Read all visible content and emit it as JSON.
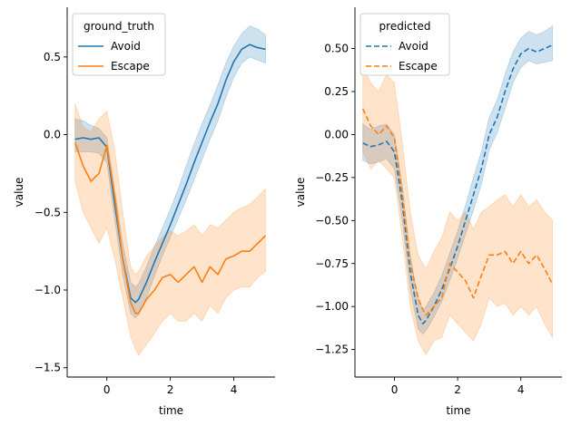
{
  "chart_data": [
    {
      "type": "line",
      "xlabel": "time",
      "ylabel": "value",
      "xlim": [
        -1.25,
        5.3
      ],
      "ylim": [
        -1.56,
        0.82
      ],
      "xticks": [
        0,
        2,
        4
      ],
      "yticks": [
        -1.5,
        -1.0,
        -0.5,
        0.0,
        0.5
      ],
      "ytick_labels": [
        "−1.5",
        "−1.0",
        "−0.5",
        "0.0",
        "0.5"
      ],
      "grid": false,
      "legend": {
        "title": "ground_truth",
        "placement": "upper-left"
      },
      "series": [
        {
          "name": "Avoid",
          "color": "#1f77b4",
          "dashed": false,
          "x": [
            -1.0,
            -0.75,
            -0.5,
            -0.25,
            0.0,
            0.25,
            0.5,
            0.75,
            0.9,
            1.0,
            1.25,
            1.5,
            1.75,
            2.0,
            2.25,
            2.5,
            2.75,
            3.0,
            3.25,
            3.5,
            3.75,
            4.0,
            4.25,
            4.5,
            4.75,
            5.0
          ],
          "y": [
            -0.03,
            -0.02,
            -0.03,
            -0.02,
            -0.08,
            -0.45,
            -0.8,
            -1.05,
            -1.08,
            -1.06,
            -0.95,
            -0.82,
            -0.7,
            -0.58,
            -0.45,
            -0.32,
            -0.18,
            -0.05,
            0.08,
            0.2,
            0.35,
            0.47,
            0.55,
            0.58,
            0.56,
            0.55
          ],
          "band_low": [
            -0.11,
            -0.11,
            -0.11,
            -0.12,
            -0.18,
            -0.55,
            -0.9,
            -1.15,
            -1.18,
            -1.16,
            -1.05,
            -0.91,
            -0.78,
            -0.66,
            -0.54,
            -0.42,
            -0.29,
            -0.16,
            -0.03,
            0.09,
            0.24,
            0.37,
            0.46,
            0.5,
            0.48,
            0.46
          ],
          "band_high": [
            0.1,
            0.09,
            0.06,
            0.04,
            -0.02,
            -0.36,
            -0.7,
            -0.95,
            -0.98,
            -0.96,
            -0.85,
            -0.72,
            -0.6,
            -0.48,
            -0.35,
            -0.2,
            -0.06,
            0.07,
            0.19,
            0.32,
            0.46,
            0.57,
            0.65,
            0.7,
            0.68,
            0.64
          ]
        },
        {
          "name": "Escape",
          "color": "#ff7f0e",
          "dashed": false,
          "x": [
            -1.0,
            -0.75,
            -0.5,
            -0.25,
            0.0,
            0.25,
            0.5,
            0.75,
            0.9,
            1.0,
            1.25,
            1.5,
            1.75,
            2.0,
            2.25,
            2.5,
            2.75,
            3.0,
            3.25,
            3.5,
            3.75,
            4.0,
            4.25,
            4.5,
            4.75,
            5.0
          ],
          "y": [
            -0.05,
            -0.2,
            -0.3,
            -0.25,
            -0.07,
            -0.4,
            -0.8,
            -1.08,
            -1.15,
            -1.15,
            -1.06,
            -1.0,
            -0.92,
            -0.9,
            -0.95,
            -0.9,
            -0.85,
            -0.95,
            -0.85,
            -0.9,
            -0.8,
            -0.78,
            -0.75,
            -0.75,
            -0.7,
            -0.65
          ],
          "band_low": [
            -0.3,
            -0.5,
            -0.6,
            -0.7,
            -0.6,
            -0.8,
            -1.05,
            -1.3,
            -1.38,
            -1.42,
            -1.35,
            -1.28,
            -1.2,
            -1.15,
            -1.2,
            -1.2,
            -1.15,
            -1.2,
            -1.1,
            -1.15,
            -1.05,
            -1.0,
            -0.98,
            -0.98,
            -0.92,
            -0.88
          ],
          "band_high": [
            0.2,
            0.05,
            0.02,
            0.1,
            0.15,
            -0.1,
            -0.5,
            -0.85,
            -0.9,
            -0.88,
            -0.78,
            -0.72,
            -0.66,
            -0.62,
            -0.65,
            -0.62,
            -0.58,
            -0.65,
            -0.58,
            -0.6,
            -0.55,
            -0.5,
            -0.47,
            -0.45,
            -0.4,
            -0.35
          ]
        }
      ]
    },
    {
      "type": "line",
      "xlabel": "time",
      "ylabel": "value",
      "xlim": [
        -1.25,
        5.3
      ],
      "ylim": [
        -1.41,
        0.74
      ],
      "xticks": [
        0,
        2,
        4
      ],
      "yticks": [
        -1.25,
        -1.0,
        -0.75,
        -0.5,
        -0.25,
        0.0,
        0.25,
        0.5
      ],
      "ytick_labels": [
        "−1.25",
        "−1.00",
        "−0.75",
        "−0.50",
        "−0.25",
        "0.00",
        "0.25",
        "0.50"
      ],
      "grid": false,
      "legend": {
        "title": "predicted",
        "placement": "upper-left"
      },
      "series": [
        {
          "name": "Avoid",
          "color": "#1f77b4",
          "dashed": true,
          "x": [
            -1.0,
            -0.75,
            -0.5,
            -0.25,
            0.0,
            0.25,
            0.5,
            0.75,
            0.9,
            1.0,
            1.25,
            1.5,
            1.75,
            2.0,
            2.25,
            2.5,
            2.75,
            3.0,
            3.25,
            3.5,
            3.75,
            4.0,
            4.25,
            4.5,
            4.75,
            5.0
          ],
          "y": [
            -0.05,
            -0.07,
            -0.06,
            -0.04,
            -0.1,
            -0.4,
            -0.8,
            -1.05,
            -1.1,
            -1.08,
            -1.0,
            -0.9,
            -0.78,
            -0.65,
            -0.5,
            -0.35,
            -0.2,
            0.0,
            0.1,
            0.25,
            0.38,
            0.47,
            0.5,
            0.48,
            0.5,
            0.52
          ],
          "band_low": [
            -0.15,
            -0.17,
            -0.16,
            -0.14,
            -0.2,
            -0.5,
            -0.9,
            -1.13,
            -1.16,
            -1.14,
            -1.06,
            -0.97,
            -0.85,
            -0.72,
            -0.58,
            -0.44,
            -0.29,
            -0.09,
            0.01,
            0.15,
            0.3,
            0.39,
            0.43,
            0.41,
            0.42,
            0.43
          ],
          "band_high": [
            0.06,
            0.03,
            0.05,
            0.06,
            0.0,
            -0.3,
            -0.7,
            -0.96,
            -1.02,
            -1.0,
            -0.92,
            -0.82,
            -0.69,
            -0.56,
            -0.41,
            -0.25,
            -0.1,
            0.1,
            0.2,
            0.35,
            0.48,
            0.56,
            0.6,
            0.58,
            0.6,
            0.63
          ]
        },
        {
          "name": "Escape",
          "color": "#ff7f0e",
          "dashed": true,
          "x": [
            -1.0,
            -0.75,
            -0.5,
            -0.25,
            0.0,
            0.25,
            0.5,
            0.75,
            0.9,
            1.0,
            1.25,
            1.5,
            1.75,
            2.0,
            2.25,
            2.5,
            2.75,
            3.0,
            3.25,
            3.5,
            3.75,
            4.0,
            4.25,
            4.5,
            4.75,
            5.0
          ],
          "y": [
            0.15,
            0.05,
            0.0,
            0.05,
            -0.02,
            -0.35,
            -0.75,
            -0.95,
            -1.02,
            -1.05,
            -1.0,
            -0.95,
            -0.75,
            -0.8,
            -0.85,
            -0.95,
            -0.82,
            -0.7,
            -0.7,
            -0.68,
            -0.75,
            -0.68,
            -0.75,
            -0.7,
            -0.78,
            -0.87
          ],
          "band_low": [
            -0.1,
            -0.2,
            -0.15,
            -0.2,
            -0.25,
            -0.6,
            -1.0,
            -1.2,
            -1.25,
            -1.28,
            -1.2,
            -1.18,
            -1.05,
            -1.1,
            -1.15,
            -1.2,
            -1.1,
            -0.95,
            -1.0,
            -0.98,
            -1.05,
            -1.0,
            -1.05,
            -1.0,
            -1.1,
            -1.18
          ],
          "band_high": [
            0.4,
            0.3,
            0.25,
            0.35,
            0.3,
            -0.05,
            -0.45,
            -0.7,
            -0.75,
            -0.78,
            -0.68,
            -0.6,
            -0.45,
            -0.5,
            -0.45,
            -0.55,
            -0.45,
            -0.42,
            -0.38,
            -0.35,
            -0.42,
            -0.35,
            -0.42,
            -0.38,
            -0.45,
            -0.5
          ]
        }
      ]
    }
  ]
}
